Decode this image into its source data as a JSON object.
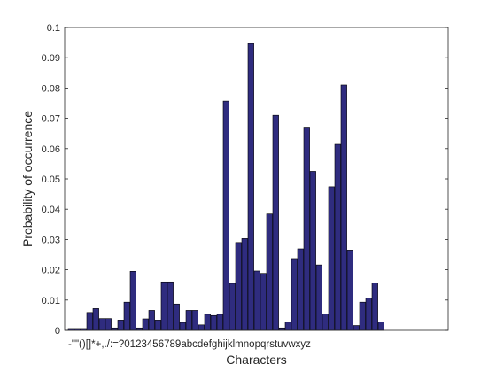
{
  "chart_data": {
    "type": "bar",
    "title": "",
    "xlabel": "Characters",
    "ylabel": "Probability of occurrence",
    "ylim": [
      0,
      0.1
    ],
    "yticks": [
      "0",
      "0.01",
      "0.02",
      "0.03",
      "0.04",
      "0.05",
      "0.06",
      "0.07",
      "0.08",
      "0.09",
      "0.1"
    ],
    "grid": false,
    "colors": {
      "bar_fill": "#2f2c7f",
      "bar_edge": "#000000",
      "axis": "#262626"
    },
    "categories": [
      "-",
      "\"",
      "\"",
      "(",
      ")",
      "[",
      "]",
      "*",
      "+",
      ",",
      ".",
      "/",
      ":",
      "=",
      "?",
      "0",
      "1",
      "2",
      "3",
      "4",
      "5",
      "6",
      "7",
      "8",
      "9",
      "a",
      "b",
      "c",
      "d",
      "e",
      "f",
      "g",
      "h",
      "i",
      "j",
      "k",
      "l",
      "m",
      "n",
      "o",
      "p",
      "q",
      "r",
      "s",
      "t",
      "u",
      "v",
      "w",
      "x",
      "y",
      "z"
    ],
    "values": [
      0.0006,
      0.0006,
      0.0006,
      0.0059,
      0.0072,
      0.0039,
      0.0039,
      0.0008,
      0.0034,
      0.0093,
      0.0195,
      0.0008,
      0.0038,
      0.0066,
      0.0034,
      0.016,
      0.016,
      0.0087,
      0.0026,
      0.0066,
      0.0066,
      0.0018,
      0.0053,
      0.0049,
      0.0053,
      0.0757,
      0.0155,
      0.029,
      0.0303,
      0.0947,
      0.0196,
      0.0188,
      0.0384,
      0.071,
      0.0008,
      0.0027,
      0.0237,
      0.0269,
      0.0671,
      0.0525,
      0.0216,
      0.0054,
      0.0474,
      0.0614,
      0.081,
      0.0265,
      0.0016,
      0.0093,
      0.0107,
      0.0156,
      0.0028
    ]
  }
}
